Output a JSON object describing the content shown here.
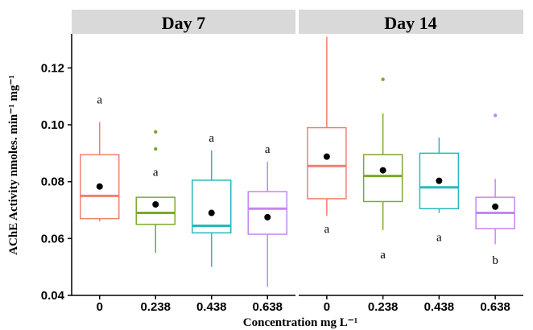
{
  "chart_data": {
    "type": "boxplot",
    "xlabel": "Concentration mg L⁻¹",
    "ylabel": "AChE Activity nmoles. min⁻¹ mg⁻¹",
    "ylim": [
      0.04,
      0.132
    ],
    "yticks": [
      0.04,
      0.06,
      0.08,
      0.1,
      0.12
    ],
    "ytick_labels": [
      "0.04",
      "0.06",
      "0.08",
      "0.10",
      "0.12"
    ],
    "categories": [
      "0",
      "0.238",
      "0.438",
      "0.638"
    ],
    "colors": [
      "#f08070",
      "#7aaa2a",
      "#28b8c0",
      "#c486f2"
    ],
    "facets": [
      {
        "title": "Day 7",
        "boxes": [
          {
            "category": "0",
            "whisker_low": 0.066,
            "q1": 0.067,
            "median": 0.075,
            "q3": 0.0895,
            "whisker_high": 0.101,
            "mean": 0.0783,
            "outliers": [],
            "letter": "a",
            "letter_y": 0.109
          },
          {
            "category": "0.238",
            "whisker_low": 0.055,
            "q1": 0.065,
            "median": 0.069,
            "q3": 0.0745,
            "whisker_high": 0.0745,
            "mean": 0.072,
            "outliers": [
              0.0975,
              0.0915
            ],
            "letter": "a",
            "letter_y": 0.0835
          },
          {
            "category": "0.438",
            "whisker_low": 0.05,
            "q1": 0.062,
            "median": 0.0645,
            "q3": 0.0805,
            "whisker_high": 0.091,
            "mean": 0.069,
            "outliers": [],
            "letter": "a",
            "letter_y": 0.0955
          },
          {
            "category": "0.638",
            "whisker_low": 0.043,
            "q1": 0.0615,
            "median": 0.0705,
            "q3": 0.0765,
            "whisker_high": 0.087,
            "mean": 0.0675,
            "outliers": [],
            "letter": "a",
            "letter_y": 0.0915
          }
        ]
      },
      {
        "title": "Day 14",
        "boxes": [
          {
            "category": "0",
            "whisker_low": 0.068,
            "q1": 0.074,
            "median": 0.0855,
            "q3": 0.099,
            "whisker_high": 0.131,
            "mean": 0.0888,
            "outliers": [],
            "letter": "a",
            "letter_y": 0.0635
          },
          {
            "category": "0.238",
            "whisker_low": 0.063,
            "q1": 0.073,
            "median": 0.082,
            "q3": 0.0895,
            "whisker_high": 0.104,
            "mean": 0.084,
            "outliers": [
              0.116
            ],
            "letter": "a",
            "letter_y": 0.0545
          },
          {
            "category": "0.438",
            "whisker_low": 0.069,
            "q1": 0.0705,
            "median": 0.078,
            "q3": 0.09,
            "whisker_high": 0.0955,
            "mean": 0.0803,
            "outliers": [],
            "letter": "a",
            "letter_y": 0.0605
          },
          {
            "category": "0.638",
            "whisker_low": 0.058,
            "q1": 0.0635,
            "median": 0.069,
            "q3": 0.0745,
            "whisker_high": 0.081,
            "mean": 0.0712,
            "outliers": [
              0.1033
            ],
            "letter": "b",
            "letter_y": 0.0525
          }
        ]
      }
    ]
  }
}
